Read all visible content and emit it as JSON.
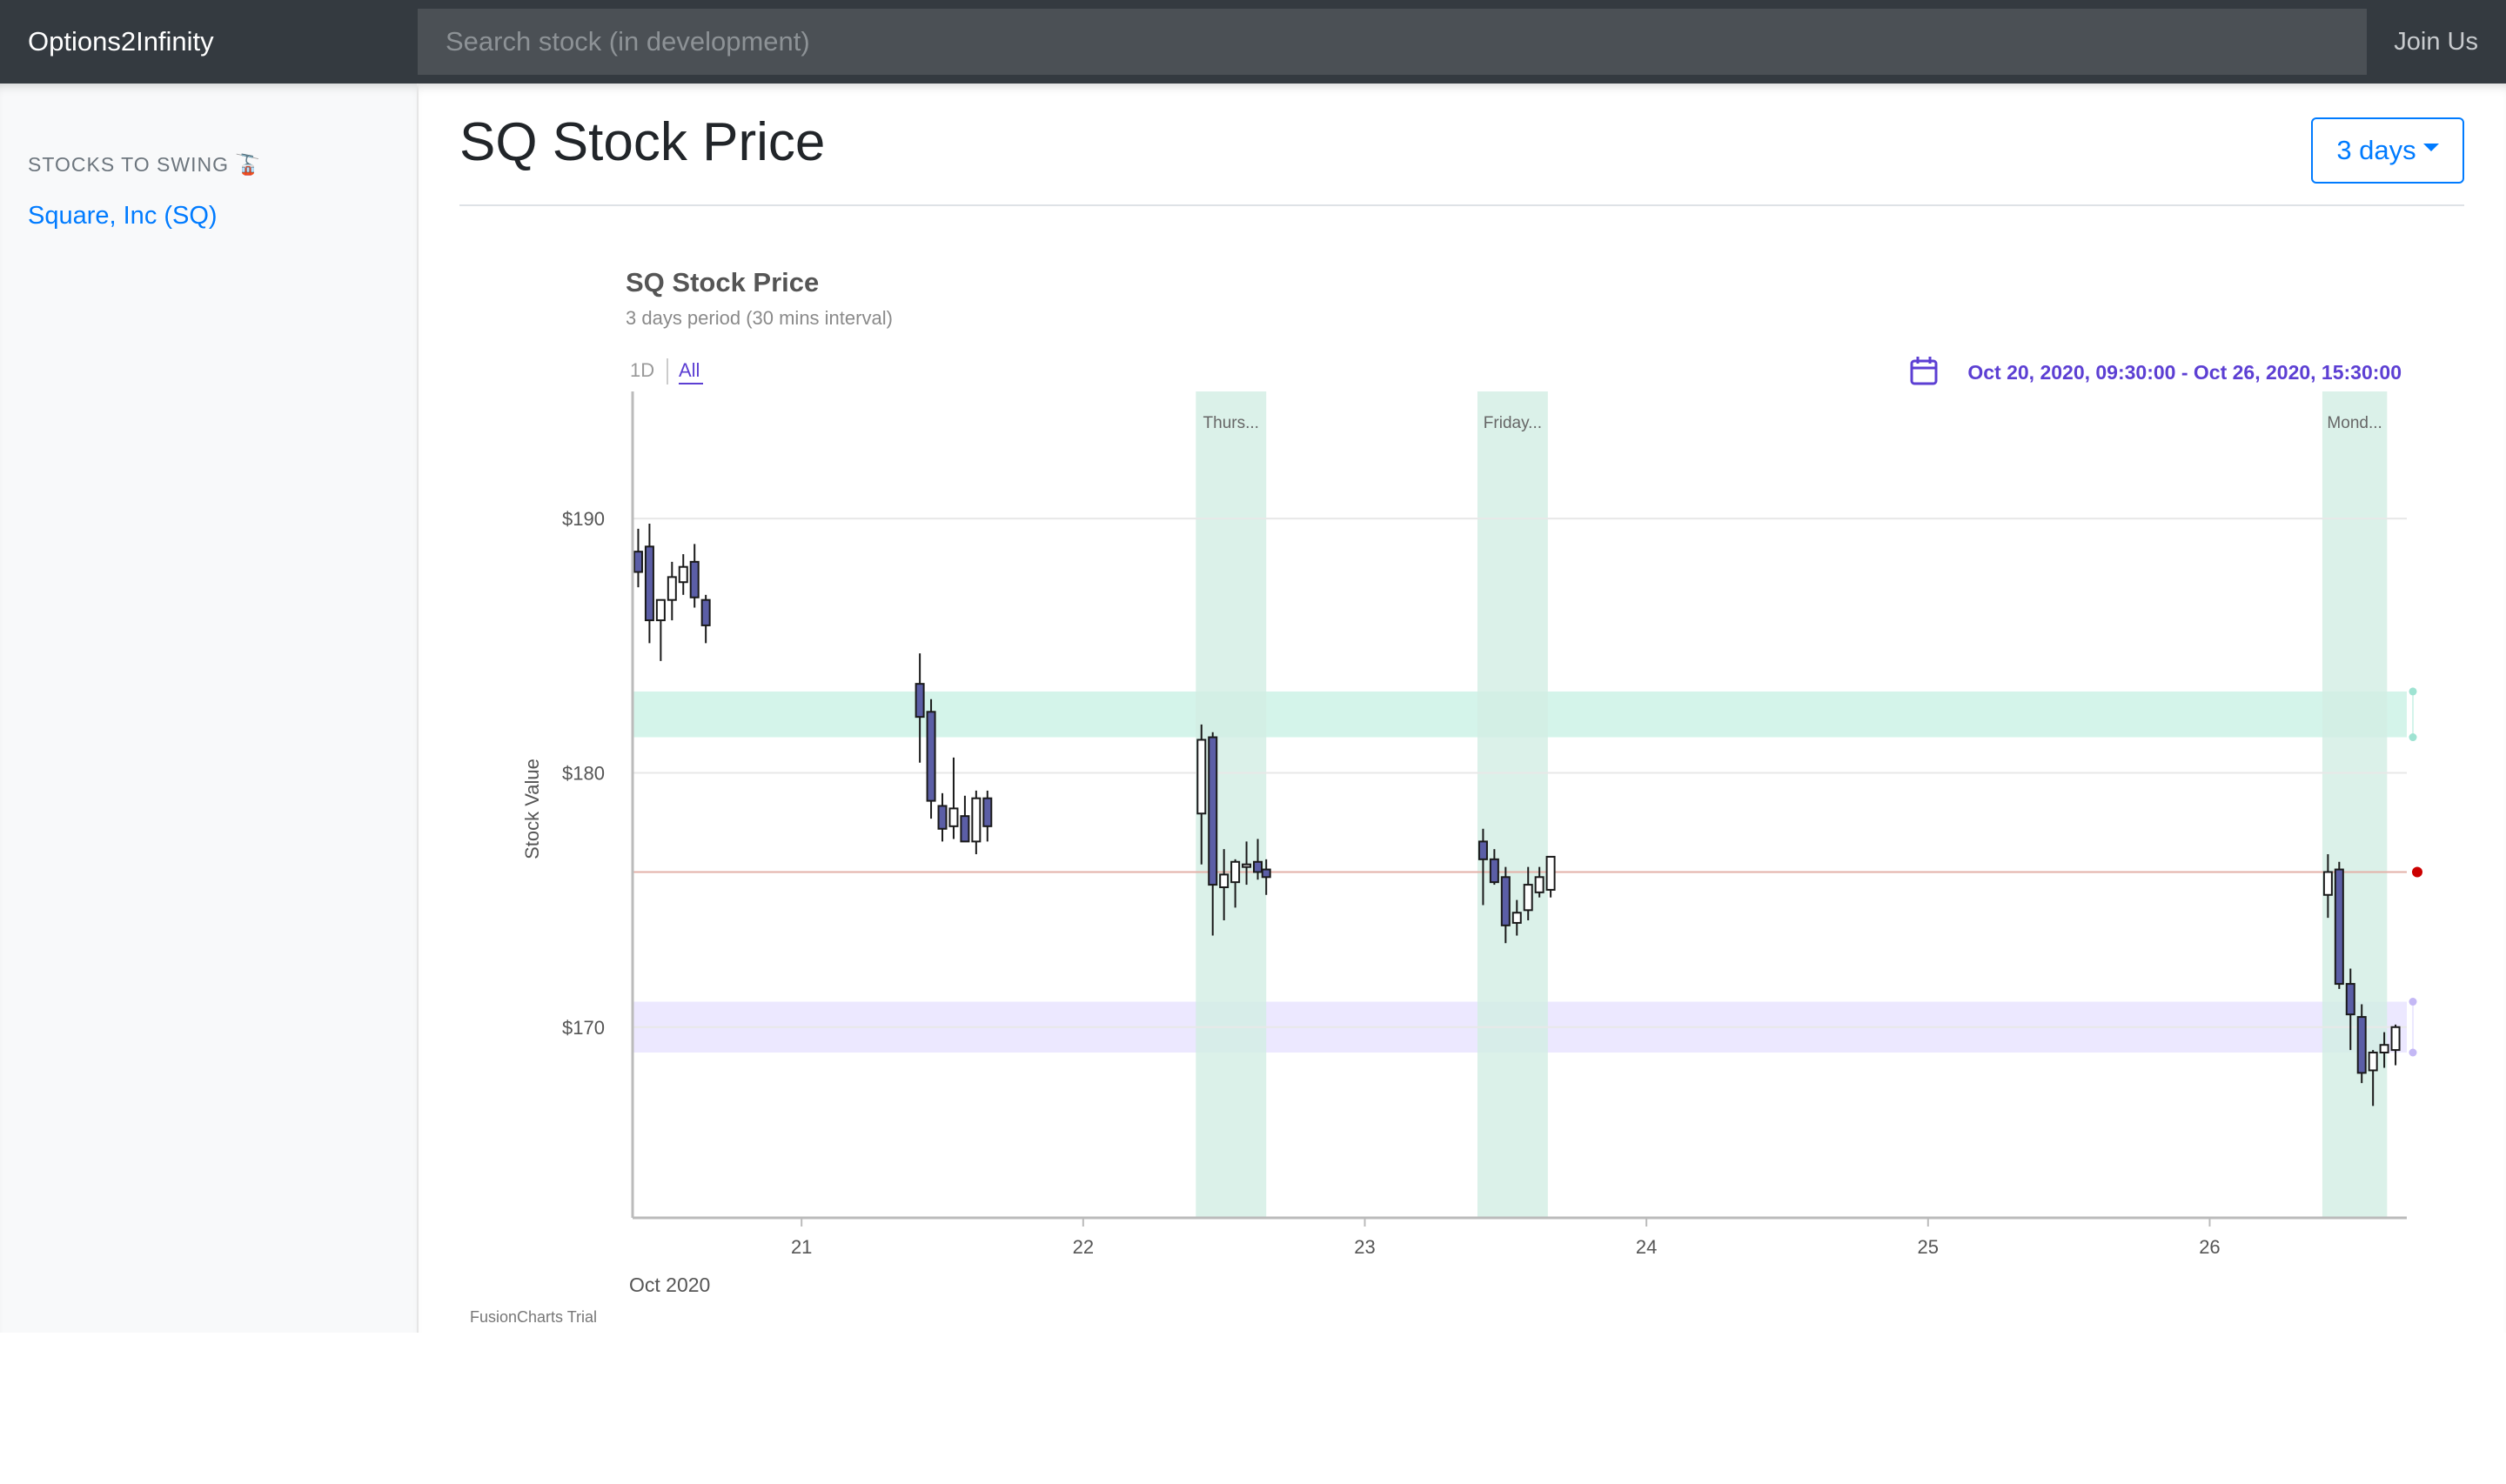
{
  "navbar": {
    "brand": "Options2Infinity",
    "search_placeholder": "Search stock (in development)",
    "join_label": "Join Us"
  },
  "sidebar": {
    "heading": "STOCKS TO SWING 🚡",
    "items": [
      {
        "label": "Square, Inc (SQ)"
      }
    ]
  },
  "main": {
    "title": "SQ Stock Price",
    "range_label": "3 days"
  },
  "chart": {
    "caption": "SQ Stock Price",
    "subcaption": "3 days period (30 mins interval)",
    "selectors": [
      "1D",
      "All"
    ],
    "active_selector": "All",
    "date_range": "Oct 20, 2020, 09:30:00 - Oct 26, 2020, 15:30:00",
    "ylabel": "Stock Value",
    "month_label": "Oct 2020",
    "watermark": "FusionCharts Trial",
    "colors": {
      "accent": "#5c3fd3",
      "band_green": "#d4f4ea",
      "band_purple": "#ece8ff",
      "day_highlight": "#d2ede3",
      "bear_fill": "#5b5ea6",
      "bull_fill": "#ffffff",
      "reference_line": "#e3b1a8",
      "reference_marker": "#cc0000"
    }
  },
  "chart_data": {
    "type": "candlestick",
    "title": "SQ Stock Price",
    "subtitle": "3 days period (30 mins interval)",
    "ylabel": "Stock Value",
    "ylim": [
      162.5,
      195
    ],
    "xlim": [
      20.4,
      26.7
    ],
    "y_ticks": [
      {
        "value": 170,
        "label": "$170"
      },
      {
        "value": 180,
        "label": "$180"
      },
      {
        "value": 190,
        "label": "$190"
      }
    ],
    "x_ticks": [
      {
        "value": 21,
        "label": "21"
      },
      {
        "value": 22,
        "label": "22"
      },
      {
        "value": 23,
        "label": "23"
      },
      {
        "value": 24,
        "label": "24"
      },
      {
        "value": 25,
        "label": "25"
      },
      {
        "value": 26,
        "label": "26"
      }
    ],
    "bands": [
      {
        "from": 181.4,
        "to": 183.2,
        "color": "#d4f4ea"
      },
      {
        "from": 169.0,
        "to": 171.0,
        "color": "#ece8ff"
      }
    ],
    "reference_line": {
      "value": 176.1,
      "color": "#e3b1a8"
    },
    "time_markers": [
      {
        "from": 22.4,
        "to": 22.65,
        "label": "Thurs..."
      },
      {
        "from": 23.4,
        "to": 23.65,
        "label": "Friday..."
      },
      {
        "from": 26.4,
        "to": 26.63,
        "label": "Mond..."
      }
    ],
    "candles": [
      {
        "x": 20.42,
        "open": 188.7,
        "high": 189.6,
        "low": 187.3,
        "close": 187.9
      },
      {
        "x": 20.46,
        "open": 188.9,
        "high": 189.8,
        "low": 185.1,
        "close": 186.0
      },
      {
        "x": 20.5,
        "open": 186.0,
        "high": 186.8,
        "low": 184.4,
        "close": 186.8
      },
      {
        "x": 20.54,
        "open": 186.8,
        "high": 188.3,
        "low": 186.0,
        "close": 187.7
      },
      {
        "x": 20.58,
        "open": 187.5,
        "high": 188.6,
        "low": 187.0,
        "close": 188.1
      },
      {
        "x": 20.62,
        "open": 188.3,
        "high": 189.0,
        "low": 186.5,
        "close": 186.9
      },
      {
        "x": 20.66,
        "open": 186.8,
        "high": 187.0,
        "low": 185.1,
        "close": 185.8
      },
      {
        "x": 21.42,
        "open": 183.5,
        "high": 184.7,
        "low": 180.4,
        "close": 182.2
      },
      {
        "x": 21.46,
        "open": 182.4,
        "high": 182.9,
        "low": 178.2,
        "close": 178.9
      },
      {
        "x": 21.5,
        "open": 178.7,
        "high": 179.2,
        "low": 177.3,
        "close": 177.8
      },
      {
        "x": 21.54,
        "open": 177.9,
        "high": 180.6,
        "low": 177.4,
        "close": 178.6
      },
      {
        "x": 21.58,
        "open": 178.3,
        "high": 179.1,
        "low": 177.3,
        "close": 177.3
      },
      {
        "x": 21.62,
        "open": 177.3,
        "high": 179.3,
        "low": 176.8,
        "close": 179.0
      },
      {
        "x": 21.66,
        "open": 179.0,
        "high": 179.3,
        "low": 177.3,
        "close": 177.9
      },
      {
        "x": 22.42,
        "open": 178.4,
        "high": 181.9,
        "low": 176.4,
        "close": 181.3
      },
      {
        "x": 22.46,
        "open": 181.4,
        "high": 181.6,
        "low": 173.6,
        "close": 175.6
      },
      {
        "x": 22.5,
        "open": 175.5,
        "high": 177.0,
        "low": 174.2,
        "close": 176.0
      },
      {
        "x": 22.54,
        "open": 175.7,
        "high": 176.6,
        "low": 174.7,
        "close": 176.5
      },
      {
        "x": 22.58,
        "open": 176.3,
        "high": 177.3,
        "low": 175.6,
        "close": 176.4
      },
      {
        "x": 22.62,
        "open": 176.5,
        "high": 177.4,
        "low": 175.8,
        "close": 176.1
      },
      {
        "x": 22.65,
        "open": 176.2,
        "high": 176.6,
        "low": 175.2,
        "close": 175.9
      },
      {
        "x": 23.42,
        "open": 177.3,
        "high": 177.8,
        "low": 174.8,
        "close": 176.6
      },
      {
        "x": 23.46,
        "open": 176.6,
        "high": 177.0,
        "low": 175.6,
        "close": 175.7
      },
      {
        "x": 23.5,
        "open": 175.9,
        "high": 176.3,
        "low": 173.3,
        "close": 174.0
      },
      {
        "x": 23.54,
        "open": 174.1,
        "high": 175.0,
        "low": 173.6,
        "close": 174.5
      },
      {
        "x": 23.58,
        "open": 174.6,
        "high": 176.3,
        "low": 174.2,
        "close": 175.6
      },
      {
        "x": 23.62,
        "open": 175.3,
        "high": 176.3,
        "low": 175.1,
        "close": 175.9
      },
      {
        "x": 23.66,
        "open": 175.4,
        "high": 176.7,
        "low": 175.1,
        "close": 176.7
      },
      {
        "x": 26.42,
        "open": 175.2,
        "high": 176.8,
        "low": 174.3,
        "close": 176.1
      },
      {
        "x": 26.46,
        "open": 176.2,
        "high": 176.5,
        "low": 171.5,
        "close": 171.7
      },
      {
        "x": 26.5,
        "open": 171.7,
        "high": 172.3,
        "low": 169.1,
        "close": 170.5
      },
      {
        "x": 26.54,
        "open": 170.4,
        "high": 170.9,
        "low": 167.8,
        "close": 168.2
      },
      {
        "x": 26.58,
        "open": 168.3,
        "high": 169.1,
        "low": 166.9,
        "close": 169.0
      },
      {
        "x": 26.62,
        "open": 169.0,
        "high": 169.8,
        "low": 168.4,
        "close": 169.3
      },
      {
        "x": 26.66,
        "open": 169.1,
        "high": 170.1,
        "low": 168.5,
        "close": 170.0
      }
    ]
  }
}
